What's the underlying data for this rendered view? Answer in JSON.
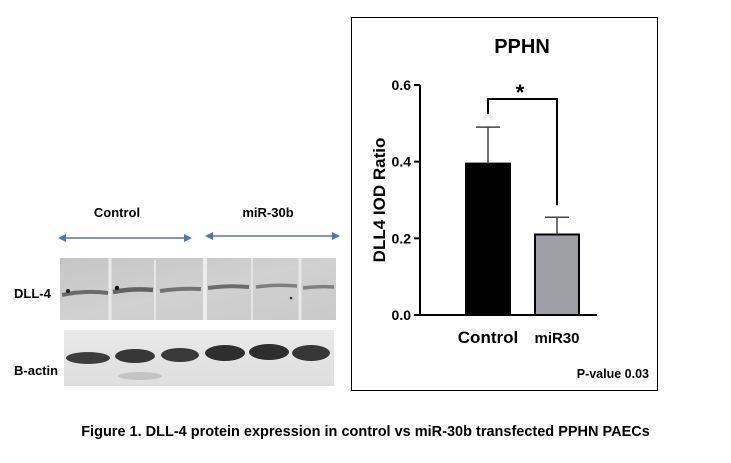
{
  "blot": {
    "group_labels": [
      "Control",
      "miR-30b"
    ],
    "row_labels": [
      "DLL-4",
      "B-actin"
    ]
  },
  "chart_data": {
    "type": "bar",
    "title": "PPHN",
    "ylabel": "DLL4 IOD Ratio",
    "xlabel": "",
    "categories": [
      "Control",
      "miR30"
    ],
    "values": [
      0.395,
      0.21
    ],
    "errors": [
      0.095,
      0.045
    ],
    "bar_colors": [
      "#000000",
      "#9e9ea6"
    ],
    "ylim": [
      0,
      0.6
    ],
    "yticks": [
      "0.0",
      "0.2",
      "0.4",
      "0.6"
    ],
    "ytick_values": [
      0,
      0.2,
      0.4,
      0.6
    ],
    "significance": "*",
    "annotation": "P-value 0.03"
  },
  "caption": "Figure 1. DLL-4 protein expression in control vs miR-30b transfected PPHN PAECs",
  "colors": {
    "arrow": "#4a76c2"
  }
}
